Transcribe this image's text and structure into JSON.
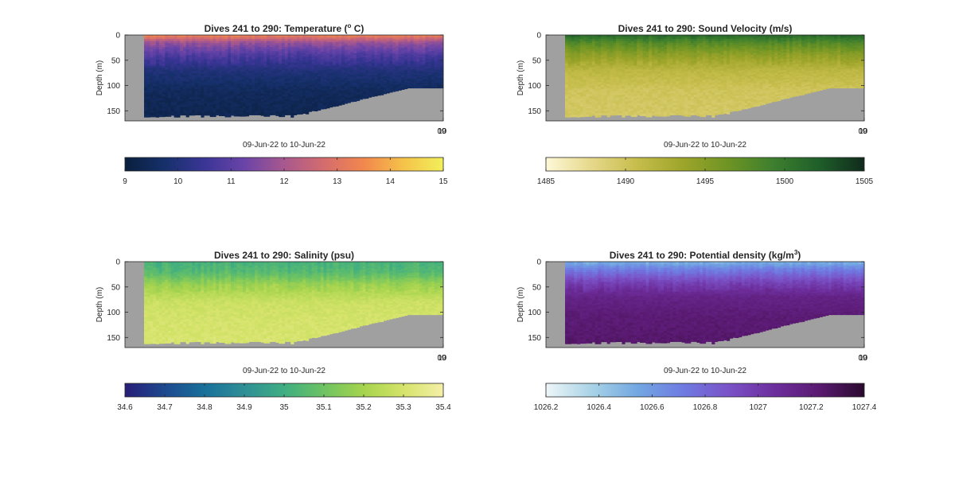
{
  "figure": {
    "background": "#ffffff",
    "axes_background": "#a0a0a0",
    "frame_color": "#262626"
  },
  "chart_data": [
    {
      "type": "heatmap",
      "title": "Dives 241 to 290: Temperature (",
      "title_super": "o",
      "title_suffix": " C)",
      "xlabel": "09-Jun-22 to 10-Jun-22",
      "ylabel": "Depth (m)",
      "ylim": [
        170,
        0
      ],
      "yticks": [
        0,
        50,
        100,
        150
      ],
      "xtick_labels": [
        "09",
        "10"
      ],
      "colorbar": {
        "ticks": [
          9,
          10,
          11,
          12,
          13,
          14,
          15
        ],
        "tick_labels": [
          "9",
          "10",
          "11",
          "12",
          "13",
          "14",
          "15"
        ],
        "colors": [
          "#0a1f3d",
          "#16306b",
          "#3a3596",
          "#6a44a8",
          "#a8588e",
          "#d46c6e",
          "#f2874d",
          "#f5c24a",
          "#f2f05a"
        ]
      },
      "field": {
        "surface_value": 13.3,
        "layers": [
          {
            "depth": 0,
            "value": 13.4
          },
          {
            "depth": 15,
            "value": 11.8
          },
          {
            "depth": 40,
            "value": 10.8
          },
          {
            "depth": 70,
            "value": 10.0
          },
          {
            "depth": 110,
            "value": 9.5
          },
          {
            "depth": 170,
            "value": 9.3
          }
        ]
      }
    },
    {
      "type": "heatmap",
      "title": "Dives 241 to 290: Sound Velocity (m/s)",
      "xlabel": "09-Jun-22 to 10-Jun-22",
      "ylabel": "Depth (m)",
      "ylim": [
        170,
        0
      ],
      "yticks": [
        0,
        50,
        100,
        150
      ],
      "xtick_labels": [
        "09",
        "10"
      ],
      "colorbar": {
        "ticks": [
          1485,
          1490,
          1495,
          1500,
          1505
        ],
        "tick_labels": [
          "1485",
          "1490",
          "1495",
          "1500",
          "1505"
        ],
        "colors": [
          "#fdf8d8",
          "#e6d88a",
          "#c6bd4c",
          "#9ea52a",
          "#6e9424",
          "#3d7f2e",
          "#1f5f2a",
          "#102a1c"
        ]
      },
      "field": {
        "surface_value": 1501.5,
        "layers": [
          {
            "depth": 0,
            "value": 1501.5
          },
          {
            "depth": 15,
            "value": 1498.0
          },
          {
            "depth": 40,
            "value": 1494.5
          },
          {
            "depth": 70,
            "value": 1491.5
          },
          {
            "depth": 110,
            "value": 1490.0
          },
          {
            "depth": 170,
            "value": 1489.5
          }
        ]
      }
    },
    {
      "type": "heatmap",
      "title": "Dives 241 to 290: Salinity (psu)",
      "xlabel": "09-Jun-22 to 10-Jun-22",
      "ylabel": "Depth (m)",
      "ylim": [
        170,
        0
      ],
      "yticks": [
        0,
        50,
        100,
        150
      ],
      "xtick_labels": [
        "09",
        "10"
      ],
      "colorbar": {
        "ticks": [
          34.6,
          34.7,
          34.8,
          34.9,
          35,
          35.1,
          35.2,
          35.3,
          35.4
        ],
        "tick_labels": [
          "34.6",
          "34.7",
          "34.8",
          "34.9",
          "35",
          "35.1",
          "35.2",
          "35.3",
          "35.4"
        ],
        "colors": [
          "#281e78",
          "#1d4a8f",
          "#19709a",
          "#2f8f96",
          "#3fae82",
          "#6ec362",
          "#a6d44e",
          "#d5e36a",
          "#f5f0a8"
        ]
      },
      "field": {
        "surface_value": 35.05,
        "layers": [
          {
            "depth": 0,
            "value": 35.02
          },
          {
            "depth": 20,
            "value": 35.05
          },
          {
            "depth": 45,
            "value": 35.18
          },
          {
            "depth": 80,
            "value": 35.28
          },
          {
            "depth": 120,
            "value": 35.3
          },
          {
            "depth": 170,
            "value": 35.31
          }
        ]
      }
    },
    {
      "type": "heatmap",
      "title": "Dives 241 to 290: Potential density (kg/m",
      "title_super": "3",
      "title_suffix": ")",
      "xlabel": "09-Jun-22 to 10-Jun-22",
      "ylabel": "Depth (m)",
      "ylim": [
        170,
        0
      ],
      "yticks": [
        0,
        50,
        100,
        150
      ],
      "xtick_labels": [
        "09",
        "10"
      ],
      "colorbar": {
        "ticks": [
          1026.2,
          1026.4,
          1026.6,
          1026.8,
          1027,
          1027.2,
          1027.4
        ],
        "tick_labels": [
          "1026.2",
          "1026.4",
          "1026.6",
          "1026.8",
          "1027",
          "1027.2",
          "1027.4"
        ],
        "colors": [
          "#eef6f8",
          "#a9d3e6",
          "#72a8e2",
          "#6f7ce2",
          "#7a53c8",
          "#6e2f9e",
          "#5a1a72",
          "#2a0a2e"
        ]
      },
      "field": {
        "surface_value": 1026.55,
        "layers": [
          {
            "depth": 0,
            "value": 1026.5
          },
          {
            "depth": 15,
            "value": 1026.7
          },
          {
            "depth": 40,
            "value": 1026.95
          },
          {
            "depth": 70,
            "value": 1027.15
          },
          {
            "depth": 110,
            "value": 1027.22
          },
          {
            "depth": 170,
            "value": 1027.25
          }
        ]
      }
    }
  ]
}
